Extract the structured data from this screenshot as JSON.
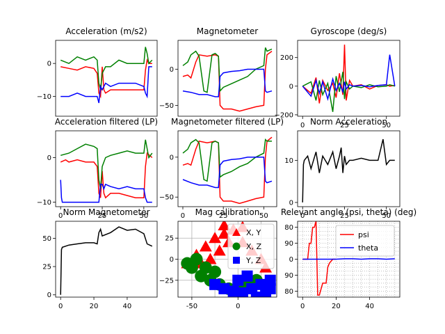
{
  "colors": {
    "red": "#ff0000",
    "green": "#008000",
    "blue": "#0000ff",
    "black": "#000000"
  },
  "chart_data": [
    {
      "type": "line",
      "title": "Acceleration (m/s2)",
      "xlim": [
        -3,
        58
      ],
      "ylim": [
        -16,
        7
      ],
      "xticks": [],
      "yticks": [
        0,
        -10
      ],
      "series": [
        {
          "color": "#ff0000",
          "x": [
            0,
            5,
            10,
            15,
            20,
            22,
            23,
            24,
            25,
            26,
            27,
            30,
            35,
            40,
            45,
            50,
            51,
            52,
            53,
            55
          ],
          "y": [
            -1,
            -1.5,
            -2,
            -1,
            -1.5,
            -3,
            -9,
            -10,
            -1,
            -8,
            -9,
            -8,
            -8,
            -8,
            -8,
            -8,
            -2,
            1,
            0,
            0
          ]
        },
        {
          "color": "#008000",
          "x": [
            0,
            5,
            10,
            15,
            20,
            22,
            23,
            24,
            25,
            26,
            27,
            30,
            35,
            40,
            45,
            50,
            51,
            52,
            53,
            55
          ],
          "y": [
            1,
            0,
            2,
            1,
            2,
            1,
            -6,
            -8,
            -3,
            -2,
            -1,
            -1,
            1,
            0,
            0,
            0,
            5,
            3,
            0,
            1
          ]
        },
        {
          "color": "#0000ff",
          "x": [
            0,
            5,
            10,
            15,
            20,
            22,
            23,
            24,
            25,
            26,
            27,
            30,
            35,
            40,
            45,
            50,
            51,
            52,
            53,
            55
          ],
          "y": [
            -10,
            -10,
            -9,
            -10,
            -10,
            -10,
            -12,
            -7,
            -8,
            -7,
            -6,
            -7,
            -6,
            -6,
            -6,
            -7,
            -9,
            -10,
            -1,
            -1
          ]
        }
      ]
    },
    {
      "type": "line",
      "title": "Magnetometer",
      "xlim": [
        -3,
        58
      ],
      "ylim": [
        -65,
        40
      ],
      "xticks": [],
      "yticks": [
        0,
        -50
      ],
      "series": [
        {
          "color": "#ff0000",
          "x": [
            0,
            3,
            5,
            8,
            10,
            15,
            20,
            22,
            23,
            25,
            30,
            35,
            40,
            45,
            50,
            51,
            52,
            55
          ],
          "y": [
            -10,
            -8,
            -12,
            10,
            20,
            18,
            20,
            18,
            -50,
            -55,
            -55,
            -58,
            -55,
            -52,
            -50,
            0,
            20,
            25
          ]
        },
        {
          "color": "#008000",
          "x": [
            0,
            3,
            5,
            8,
            10,
            13,
            15,
            18,
            20,
            22,
            23,
            25,
            30,
            35,
            40,
            45,
            50,
            51,
            52,
            55
          ],
          "y": [
            5,
            10,
            20,
            25,
            18,
            -30,
            -32,
            20,
            22,
            18,
            -30,
            -25,
            -20,
            -15,
            -10,
            0,
            5,
            30,
            25,
            28
          ]
        },
        {
          "color": "#0000ff",
          "x": [
            0,
            5,
            10,
            15,
            20,
            22,
            23,
            25,
            30,
            35,
            40,
            45,
            50,
            51,
            52,
            55
          ],
          "y": [
            -30,
            -32,
            -35,
            -35,
            -38,
            -38,
            -10,
            -5,
            -3,
            -2,
            0,
            0,
            0,
            -30,
            -32,
            -30
          ]
        }
      ]
    },
    {
      "type": "line",
      "title": "Gyroscope (deg/s)",
      "xlim": [
        -3,
        58
      ],
      "ylim": [
        -210,
        320
      ],
      "xticks": [
        0,
        25,
        50
      ],
      "yticks": [
        200,
        0,
        -200
      ],
      "series": [
        {
          "color": "#ff0000",
          "x": [
            0,
            5,
            8,
            10,
            12,
            15,
            18,
            20,
            22,
            24,
            25,
            26,
            28,
            30,
            35,
            40,
            45,
            50,
            52,
            55
          ],
          "y": [
            0,
            -50,
            60,
            -120,
            40,
            -30,
            20,
            -80,
            90,
            -60,
            290,
            -100,
            40,
            0,
            10,
            -20,
            5,
            10,
            0,
            5
          ]
        },
        {
          "color": "#008000",
          "x": [
            0,
            5,
            8,
            10,
            12,
            15,
            18,
            20,
            22,
            24,
            25,
            26,
            28,
            30,
            35,
            40,
            45,
            50,
            52,
            55
          ],
          "y": [
            0,
            30,
            -100,
            40,
            -60,
            20,
            -180,
            70,
            -40,
            100,
            -90,
            30,
            -20,
            0,
            -10,
            10,
            -5,
            0,
            10,
            0
          ]
        },
        {
          "color": "#0000ff",
          "x": [
            0,
            5,
            8,
            10,
            12,
            15,
            18,
            20,
            22,
            24,
            25,
            26,
            28,
            30,
            35,
            40,
            45,
            50,
            52,
            55
          ],
          "y": [
            0,
            -70,
            40,
            -50,
            30,
            -90,
            50,
            -30,
            20,
            -40,
            30,
            -20,
            10,
            0,
            5,
            -5,
            5,
            10,
            220,
            0
          ]
        }
      ]
    },
    {
      "type": "line",
      "title": "Acceleration filtered (LP)",
      "xlim": [
        -3,
        58
      ],
      "ylim": [
        -11,
        6
      ],
      "xticks": [
        0,
        25,
        50
      ],
      "yticks": [
        0,
        -10
      ],
      "series": [
        {
          "color": "#ff0000",
          "x": [
            0,
            3,
            5,
            10,
            15,
            20,
            22,
            23,
            24,
            25,
            26,
            27,
            30,
            35,
            40,
            45,
            50,
            51,
            52,
            55
          ],
          "y": [
            -1,
            -0.5,
            -1,
            -0.5,
            -1,
            -1,
            -2,
            -8,
            -9,
            -3,
            -8,
            -9,
            -8,
            -8,
            -8.5,
            -9,
            -9,
            -2,
            1,
            0
          ]
        },
        {
          "color": "#008000",
          "x": [
            0,
            5,
            10,
            15,
            20,
            22,
            23,
            24,
            25,
            26,
            27,
            30,
            35,
            40,
            45,
            50,
            51,
            52,
            53,
            55
          ],
          "y": [
            0.5,
            1,
            2,
            3,
            2.5,
            2,
            -5,
            -7,
            -2,
            -1,
            0,
            0.5,
            1,
            1.5,
            1,
            1,
            4,
            2,
            0,
            1
          ]
        },
        {
          "color": "#0000ff",
          "x": [
            0,
            0.5,
            1,
            5,
            10,
            15,
            20,
            22,
            23,
            24,
            25,
            26,
            27,
            30,
            35,
            40,
            45,
            50,
            51,
            52,
            53,
            55
          ],
          "y": [
            -5,
            -9,
            -10,
            -10,
            -10,
            -10,
            -10,
            -10,
            -10,
            -6,
            -6,
            -7,
            -6,
            -6.5,
            -7,
            -6.5,
            -7,
            -7,
            -9,
            -10,
            -10,
            -10
          ]
        }
      ]
    },
    {
      "type": "line",
      "title": "Magnetometer filtered (LP)",
      "xlim": [
        -3,
        58
      ],
      "ylim": [
        -62,
        33
      ],
      "xticks": [
        0,
        25,
        50
      ],
      "yticks": [
        0,
        -50
      ],
      "series": [
        {
          "color": "#ff0000",
          "x": [
            0,
            3,
            5,
            8,
            10,
            15,
            20,
            22,
            23,
            25,
            30,
            35,
            40,
            45,
            50,
            51,
            52,
            55
          ],
          "y": [
            -10,
            -8,
            -10,
            10,
            20,
            18,
            20,
            18,
            -50,
            -55,
            -55,
            -58,
            -55,
            -52,
            -50,
            0,
            20,
            25
          ]
        },
        {
          "color": "#008000",
          "x": [
            0,
            3,
            5,
            8,
            10,
            13,
            15,
            18,
            20,
            22,
            23,
            25,
            30,
            35,
            40,
            45,
            50,
            51,
            52,
            55
          ],
          "y": [
            5,
            10,
            18,
            22,
            18,
            -28,
            -30,
            18,
            20,
            18,
            -25,
            -22,
            -18,
            -12,
            -8,
            0,
            5,
            22,
            20,
            20
          ]
        },
        {
          "color": "#0000ff",
          "x": [
            0,
            5,
            10,
            15,
            20,
            22,
            23,
            25,
            30,
            35,
            40,
            45,
            50,
            51,
            52,
            55
          ],
          "y": [
            -28,
            -32,
            -35,
            -35,
            -38,
            -38,
            -10,
            -5,
            -3,
            -2,
            0,
            0,
            0,
            -30,
            -32,
            -30
          ]
        }
      ]
    },
    {
      "type": "line",
      "title": "Norm Acceleration",
      "xlim": [
        -3,
        58
      ],
      "ylim": [
        -1,
        17
      ],
      "xticks": [
        0,
        25,
        50
      ],
      "yticks": [
        0,
        10
      ],
      "series": [
        {
          "color": "#000000",
          "x": [
            0,
            0.5,
            1,
            3,
            5,
            8,
            10,
            12,
            15,
            18,
            20,
            22,
            23,
            24,
            25,
            26,
            28,
            30,
            35,
            40,
            45,
            48,
            50,
            52,
            55
          ],
          "y": [
            0,
            9,
            10,
            11,
            8,
            12,
            7,
            11,
            9,
            12,
            8,
            11,
            13,
            7,
            11,
            9,
            10,
            10,
            10.5,
            10,
            10,
            15,
            9,
            10,
            10
          ]
        }
      ]
    },
    {
      "type": "line",
      "title": "Norm Magnetometer",
      "xlim": [
        -3,
        58
      ],
      "ylim": [
        -2,
        65
      ],
      "xticks": [
        0,
        20,
        40
      ],
      "yticks": [
        0,
        25,
        50
      ],
      "series": [
        {
          "color": "#000000",
          "x": [
            0,
            0.5,
            1,
            5,
            10,
            15,
            20,
            22,
            23,
            24,
            25,
            30,
            35,
            40,
            45,
            50,
            52,
            55
          ],
          "y": [
            0,
            40,
            42,
            44,
            45,
            46,
            46,
            45,
            55,
            58,
            52,
            55,
            60,
            57,
            58,
            54,
            45,
            43
          ]
        }
      ]
    },
    {
      "type": "scatter",
      "title": "Mag calibration",
      "xlim": [
        -65,
        42
      ],
      "ylim": [
        -45,
        45
      ],
      "xticks": [
        -50,
        0
      ],
      "yticks": [
        25,
        0,
        -25
      ],
      "grid": true,
      "legend": "top-right",
      "legend_entries": [
        "X, Y",
        "X, Z",
        "Y, Z"
      ],
      "series": [
        {
          "color": "#ff0000",
          "marker": "triangle",
          "points": [
            [
              -55,
              -5
            ],
            [
              -45,
              5
            ],
            [
              -35,
              15
            ],
            [
              -25,
              25
            ],
            [
              -15,
              30
            ],
            [
              -5,
              35
            ],
            [
              5,
              38
            ],
            [
              -10,
              20
            ],
            [
              -20,
              10
            ],
            [
              -30,
              0
            ],
            [
              -40,
              -5
            ],
            [
              5,
              20
            ],
            [
              15,
              10
            ],
            [
              25,
              0
            ],
            [
              30,
              -10
            ],
            [
              -15,
              40
            ]
          ]
        },
        {
          "color": "#008000",
          "marker": "circle",
          "points": [
            [
              -55,
              -5
            ],
            [
              -50,
              -10
            ],
            [
              -40,
              -20
            ],
            [
              -30,
              -25
            ],
            [
              -20,
              -30
            ],
            [
              -10,
              -35
            ],
            [
              0,
              -35
            ],
            [
              10,
              -30
            ],
            [
              20,
              -25
            ],
            [
              -45,
              0
            ],
            [
              -35,
              -10
            ],
            [
              -25,
              -15
            ]
          ]
        },
        {
          "color": "#0000ff",
          "marker": "square",
          "points": [
            [
              -25,
              -30
            ],
            [
              -15,
              -35
            ],
            [
              -5,
              -38
            ],
            [
              5,
              -40
            ],
            [
              15,
              -35
            ],
            [
              25,
              -30
            ],
            [
              35,
              -25
            ],
            [
              30,
              -40
            ],
            [
              20,
              -45
            ],
            [
              10,
              -20
            ],
            [
              0,
              -25
            ],
            [
              35,
              -35
            ]
          ]
        }
      ]
    },
    {
      "type": "line",
      "title": "Relevant angle (psi, theta) (deg)",
      "xlim": [
        -3,
        58
      ],
      "ylim": [
        -95,
        95
      ],
      "xticks": [
        0,
        20,
        40
      ],
      "yticks": [
        "80",
        "90",
        "0",
        "90",
        "80"
      ],
      "grid": "dotted",
      "legend": "top-right",
      "legend_entries": [
        "psi",
        "theta"
      ],
      "series": [
        {
          "color": "#ff0000",
          "x": [
            0,
            3,
            4,
            5,
            6,
            7,
            8,
            9,
            10,
            12,
            14,
            15,
            16,
            18,
            20
          ],
          "y": [
            0,
            0,
            40,
            40,
            80,
            80,
            95,
            -90,
            -90,
            -60,
            -60,
            -20,
            -10,
            0,
            0
          ]
        },
        {
          "color": "#0000ff",
          "x": [
            0,
            10,
            20,
            25,
            30,
            35,
            40,
            45,
            50,
            55
          ],
          "y": [
            0,
            0,
            0,
            1,
            1,
            0,
            1,
            1,
            0,
            1
          ]
        }
      ]
    }
  ]
}
